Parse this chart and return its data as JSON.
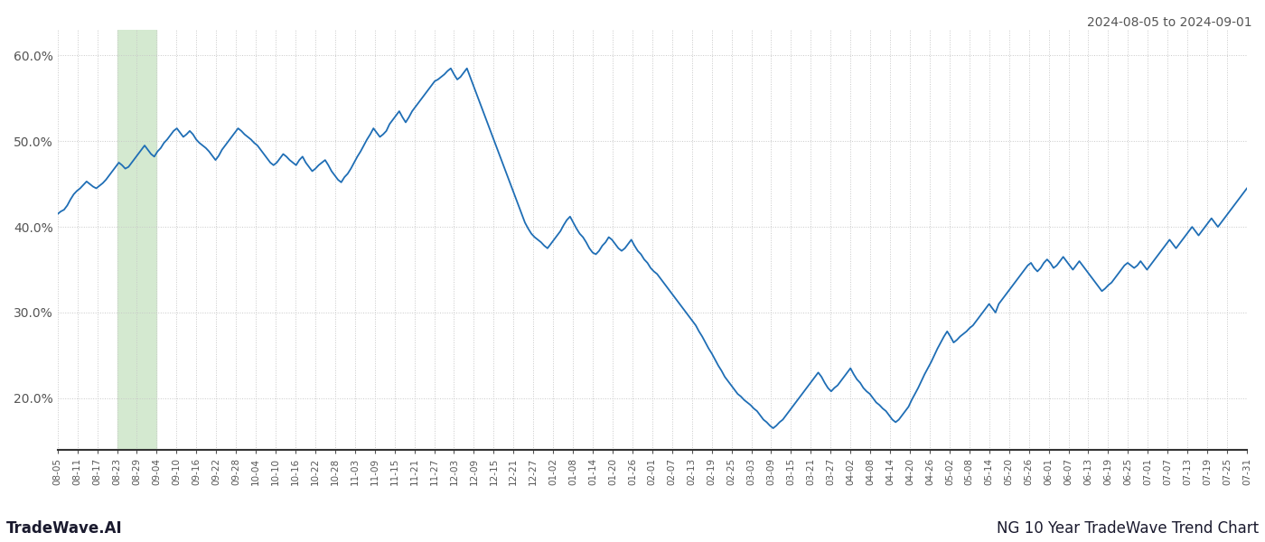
{
  "title_top_right": "2024-08-05 to 2024-09-01",
  "title_bottom_left": "TradeWave.AI",
  "title_bottom_right": "NG 10 Year TradeWave Trend Chart",
  "line_color": "#1f6eb5",
  "line_width": 1.3,
  "background_color": "#ffffff",
  "grid_color": "#c8c8c8",
  "grid_linestyle": "dotted",
  "shaded_region_color": "#d4e9d0",
  "ylim": [
    14.0,
    63.0
  ],
  "yticks": [
    20.0,
    30.0,
    40.0,
    50.0,
    60.0
  ],
  "ytick_labels": [
    "20.0%",
    "30.0%",
    "40.0%",
    "50.0%",
    "60.0%"
  ],
  "xtick_labels": [
    "08-05",
    "08-11",
    "08-17",
    "08-23",
    "08-29",
    "09-04",
    "09-10",
    "09-16",
    "09-22",
    "09-28",
    "10-04",
    "10-10",
    "10-16",
    "10-22",
    "10-28",
    "11-03",
    "11-09",
    "11-15",
    "11-21",
    "11-27",
    "12-03",
    "12-09",
    "12-15",
    "12-21",
    "12-27",
    "01-02",
    "01-08",
    "01-14",
    "01-20",
    "01-26",
    "02-01",
    "02-07",
    "02-13",
    "02-19",
    "02-25",
    "03-03",
    "03-09",
    "03-15",
    "03-21",
    "03-27",
    "04-02",
    "04-08",
    "04-14",
    "04-20",
    "04-26",
    "05-02",
    "05-08",
    "05-14",
    "05-20",
    "05-26",
    "06-01",
    "06-07",
    "06-13",
    "06-19",
    "06-25",
    "07-01",
    "07-07",
    "07-13",
    "07-19",
    "07-25",
    "07-31"
  ],
  "shaded_start_label": "08-23",
  "shaded_end_label": "09-04",
  "values": [
    41.5,
    41.8,
    42.0,
    42.5,
    43.2,
    43.8,
    44.2,
    44.5,
    44.9,
    45.3,
    45.0,
    44.7,
    44.5,
    44.8,
    45.1,
    45.5,
    46.0,
    46.5,
    47.0,
    47.5,
    47.2,
    46.8,
    47.0,
    47.5,
    48.0,
    48.5,
    49.0,
    49.5,
    49.0,
    48.5,
    48.2,
    48.8,
    49.2,
    49.8,
    50.2,
    50.7,
    51.2,
    51.5,
    51.0,
    50.5,
    50.8,
    51.2,
    50.8,
    50.2,
    49.8,
    49.5,
    49.2,
    48.8,
    48.3,
    47.8,
    48.3,
    49.0,
    49.5,
    50.0,
    50.5,
    51.0,
    51.5,
    51.2,
    50.8,
    50.5,
    50.2,
    49.8,
    49.5,
    49.0,
    48.5,
    48.0,
    47.5,
    47.2,
    47.5,
    48.0,
    48.5,
    48.2,
    47.8,
    47.5,
    47.2,
    47.8,
    48.2,
    47.5,
    47.0,
    46.5,
    46.8,
    47.2,
    47.5,
    47.8,
    47.2,
    46.5,
    46.0,
    45.5,
    45.2,
    45.8,
    46.2,
    46.8,
    47.5,
    48.2,
    48.8,
    49.5,
    50.2,
    50.8,
    51.5,
    51.0,
    50.5,
    50.8,
    51.2,
    52.0,
    52.5,
    53.0,
    53.5,
    52.8,
    52.2,
    52.8,
    53.5,
    54.0,
    54.5,
    55.0,
    55.5,
    56.0,
    56.5,
    57.0,
    57.2,
    57.5,
    57.8,
    58.2,
    58.5,
    57.8,
    57.2,
    57.5,
    58.0,
    58.5,
    57.5,
    56.5,
    55.5,
    54.5,
    53.5,
    52.5,
    51.5,
    50.5,
    49.5,
    48.5,
    47.5,
    46.5,
    45.5,
    44.5,
    43.5,
    42.5,
    41.5,
    40.5,
    39.8,
    39.2,
    38.8,
    38.5,
    38.2,
    37.8,
    37.5,
    38.0,
    38.5,
    39.0,
    39.5,
    40.2,
    40.8,
    41.2,
    40.5,
    39.8,
    39.2,
    38.8,
    38.2,
    37.5,
    37.0,
    36.8,
    37.2,
    37.8,
    38.2,
    38.8,
    38.5,
    38.0,
    37.5,
    37.2,
    37.5,
    38.0,
    38.5,
    37.8,
    37.2,
    36.8,
    36.2,
    35.8,
    35.2,
    34.8,
    34.5,
    34.0,
    33.5,
    33.0,
    32.5,
    32.0,
    31.5,
    31.0,
    30.5,
    30.0,
    29.5,
    29.0,
    28.5,
    27.8,
    27.2,
    26.5,
    25.8,
    25.2,
    24.5,
    23.8,
    23.2,
    22.5,
    22.0,
    21.5,
    21.0,
    20.5,
    20.2,
    19.8,
    19.5,
    19.2,
    18.8,
    18.5,
    18.0,
    17.5,
    17.2,
    16.8,
    16.5,
    16.8,
    17.2,
    17.5,
    18.0,
    18.5,
    19.0,
    19.5,
    20.0,
    20.5,
    21.0,
    21.5,
    22.0,
    22.5,
    23.0,
    22.5,
    21.8,
    21.2,
    20.8,
    21.2,
    21.5,
    22.0,
    22.5,
    23.0,
    23.5,
    22.8,
    22.2,
    21.8,
    21.2,
    20.8,
    20.5,
    20.0,
    19.5,
    19.2,
    18.8,
    18.5,
    18.0,
    17.5,
    17.2,
    17.5,
    18.0,
    18.5,
    19.0,
    19.8,
    20.5,
    21.2,
    22.0,
    22.8,
    23.5,
    24.2,
    25.0,
    25.8,
    26.5,
    27.2,
    27.8,
    27.2,
    26.5,
    26.8,
    27.2,
    27.5,
    27.8,
    28.2,
    28.5,
    29.0,
    29.5,
    30.0,
    30.5,
    31.0,
    30.5,
    30.0,
    31.0,
    31.5,
    32.0,
    32.5,
    33.0,
    33.5,
    34.0,
    34.5,
    35.0,
    35.5,
    35.8,
    35.2,
    34.8,
    35.2,
    35.8,
    36.2,
    35.8,
    35.2,
    35.5,
    36.0,
    36.5,
    36.0,
    35.5,
    35.0,
    35.5,
    36.0,
    35.5,
    35.0,
    34.5,
    34.0,
    33.5,
    33.0,
    32.5,
    32.8,
    33.2,
    33.5,
    34.0,
    34.5,
    35.0,
    35.5,
    35.8,
    35.5,
    35.2,
    35.5,
    36.0,
    35.5,
    35.0,
    35.5,
    36.0,
    36.5,
    37.0,
    37.5,
    38.0,
    38.5,
    38.0,
    37.5,
    38.0,
    38.5,
    39.0,
    39.5,
    40.0,
    39.5,
    39.0,
    39.5,
    40.0,
    40.5,
    41.0,
    40.5,
    40.0,
    40.5,
    41.0,
    41.5,
    42.0,
    42.5,
    43.0,
    43.5,
    44.0,
    44.5
  ]
}
